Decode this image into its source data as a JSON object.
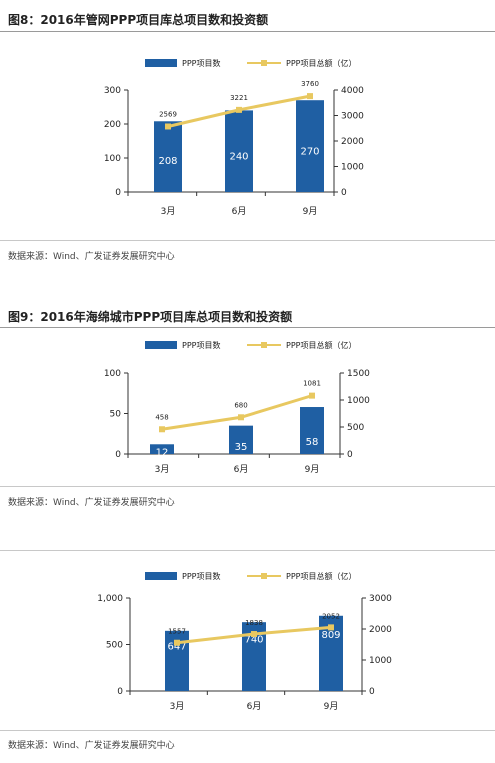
{
  "source_text": "数据来源：Wind、广发证券发展研究中心",
  "colors": {
    "bar": "#1f5fa3",
    "line": "#e8c860",
    "axis": "#333333"
  },
  "charts": [
    {
      "title": "图8：2016年管网PPP项目库总项目数和投资额"
    },
    {
      "title": "图9：2016年海绵城市PPP项目库总项目数和投资额"
    },
    {
      "title": ""
    }
  ],
  "chart_data": [
    {
      "type": "bar",
      "title": "图8：2016年管网PPP项目库总项目数和投资额",
      "categories": [
        "3月",
        "6月",
        "9月"
      ],
      "legend": [
        "PPP项目数",
        "PPP项目总额（亿）"
      ],
      "series": [
        {
          "name": "PPP项目数",
          "type": "bar",
          "axis": "left",
          "values": [
            208,
            240,
            270
          ]
        },
        {
          "name": "PPP项目总额（亿）",
          "type": "line",
          "axis": "right",
          "values": [
            2569,
            3221,
            3760
          ]
        }
      ],
      "y_left": {
        "ylim": [
          0,
          300
        ],
        "ticks": [
          "0",
          "100",
          "200",
          "300"
        ]
      },
      "y_right": {
        "ylim": [
          0,
          4000
        ],
        "ticks": [
          "0",
          "1000",
          "2000",
          "3000",
          "4000"
        ]
      },
      "legend_position": "top-center",
      "grid": false
    },
    {
      "type": "bar",
      "title": "图9：2016年海绵城市PPP项目库总项目数和投资额",
      "categories": [
        "3月",
        "6月",
        "9月"
      ],
      "legend": [
        "PPP项目数",
        "PPP项目总额（亿）"
      ],
      "series": [
        {
          "name": "PPP项目数",
          "type": "bar",
          "axis": "left",
          "values": [
            12,
            35,
            58
          ]
        },
        {
          "name": "PPP项目总额（亿）",
          "type": "line",
          "axis": "right",
          "values": [
            458,
            680,
            1081
          ]
        }
      ],
      "y_left": {
        "ylim": [
          0,
          100
        ],
        "ticks": [
          "0",
          "50",
          "100"
        ]
      },
      "y_right": {
        "ylim": [
          0,
          1500
        ],
        "ticks": [
          "0",
          "500",
          "1000",
          "1500"
        ]
      },
      "legend_position": "top-center",
      "grid": false
    },
    {
      "type": "bar",
      "title": "",
      "categories": [
        "3月",
        "6月",
        "9月"
      ],
      "legend": [
        "PPP项目数",
        "PPP项目总额（亿）"
      ],
      "series": [
        {
          "name": "PPP项目数",
          "type": "bar",
          "axis": "left",
          "values": [
            647,
            740,
            809
          ]
        },
        {
          "name": "PPP项目总额（亿）",
          "type": "line",
          "axis": "right",
          "values": [
            1557,
            1838,
            2052
          ]
        }
      ],
      "y_left": {
        "ylim": [
          0,
          1000
        ],
        "ticks": [
          "0",
          "500",
          "1,000"
        ]
      },
      "y_right": {
        "ylim": [
          0,
          3000
        ],
        "ticks": [
          "0",
          "1000",
          "2000",
          "3000"
        ]
      },
      "legend_position": "top-center",
      "grid": false
    }
  ]
}
